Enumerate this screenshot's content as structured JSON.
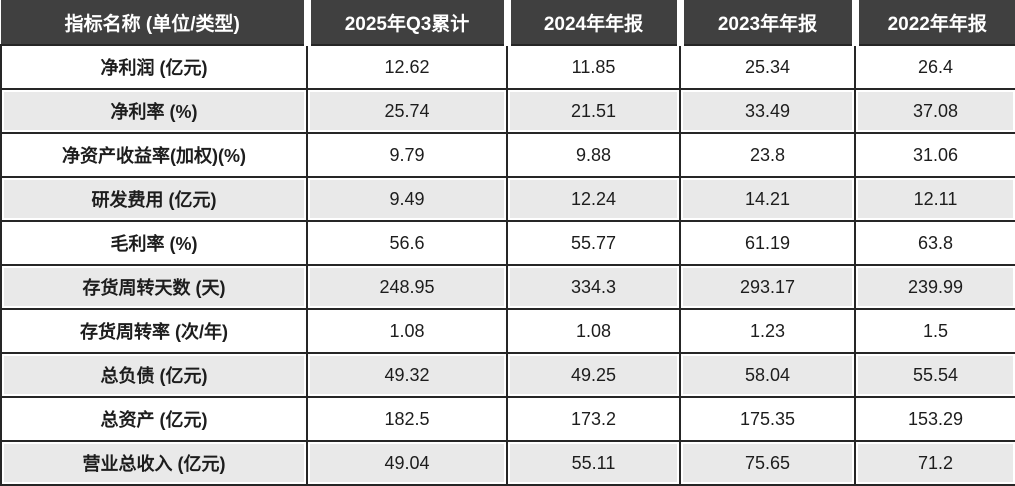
{
  "chart_data": {
    "type": "table",
    "columns": [
      "指标名称 (单位/类型)",
      "2025年Q3累计",
      "2024年年报",
      "2023年年报",
      "2022年年报"
    ],
    "rows": [
      {
        "label": "净利润 (亿元)",
        "values": [
          "12.62",
          "11.85",
          "25.34",
          "26.4"
        ]
      },
      {
        "label": "净利率 (%)",
        "values": [
          "25.74",
          "21.51",
          "33.49",
          "37.08"
        ]
      },
      {
        "label": "净资产收益率(加权)(%)",
        "values": [
          "9.79",
          "9.88",
          "23.8",
          "31.06"
        ]
      },
      {
        "label": "研发费用 (亿元)",
        "values": [
          "9.49",
          "12.24",
          "14.21",
          "12.11"
        ]
      },
      {
        "label": "毛利率 (%)",
        "values": [
          "56.6",
          "55.77",
          "61.19",
          "63.8"
        ]
      },
      {
        "label": "存货周转天数 (天)",
        "values": [
          "248.95",
          "334.3",
          "293.17",
          "239.99"
        ]
      },
      {
        "label": "存货周转率 (次/年)",
        "values": [
          "1.08",
          "1.08",
          "1.23",
          "1.5"
        ]
      },
      {
        "label": "总负债 (亿元)",
        "values": [
          "49.32",
          "49.25",
          "58.04",
          "55.54"
        ]
      },
      {
        "label": "总资产 (亿元)",
        "values": [
          "182.5",
          "173.2",
          "175.35",
          "153.29"
        ]
      },
      {
        "label": "营业总收入 (亿元)",
        "values": [
          "49.04",
          "55.11",
          "75.65",
          "71.2"
        ]
      }
    ],
    "layout": {
      "striped": true,
      "first_data_row_background": "#ffffff",
      "alternate_row_background": "#e9e9e9"
    }
  },
  "colors": {
    "header_bg": "#404040",
    "header_text": "#ffffff",
    "grid_line": "#262626",
    "row_alt_bg": "#e9e9e9",
    "body_text": "#1d1d1d"
  }
}
